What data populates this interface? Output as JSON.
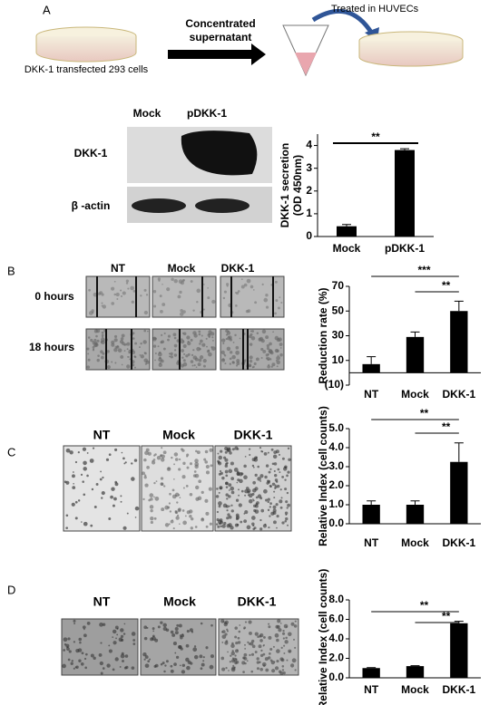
{
  "panels": [
    "A",
    "B",
    "C",
    "D"
  ],
  "diagram": {
    "source": "DKK-1 transfected 293 cells",
    "arrow": [
      "Concentrated",
      "supernatant"
    ],
    "target": "Treated in HUVECs"
  },
  "blot": {
    "lanes": [
      "Mock",
      "pDKK-1"
    ],
    "rows": [
      "DKK-1",
      "β -actin"
    ]
  },
  "migration": {
    "columns": [
      "NT",
      "Mock",
      "DKK-1"
    ],
    "rows": [
      "0 hours",
      "18 hours"
    ]
  },
  "invasion": {
    "columns": [
      "NT",
      "Mock",
      "DKK-1"
    ]
  },
  "tube": {
    "columns": [
      "NT",
      "Mock",
      "DKK-1"
    ]
  },
  "chart_data": [
    {
      "type": "bar",
      "ylabel": [
        "DKK-1 secretion",
        "(OD 450nm)"
      ],
      "categories": [
        "Mock",
        "pDKK-1"
      ],
      "values": [
        0.45,
        3.8
      ],
      "errors": [
        0.08,
        0.06
      ],
      "color": "#000000",
      "ylim": [
        0,
        4.5
      ],
      "yticks": [
        0,
        1,
        2,
        3,
        4
      ],
      "annotations": [
        "**"
      ]
    },
    {
      "type": "bar",
      "ylabel": "Reduction rate (%)",
      "categories": [
        "NT",
        "Mock",
        "DKK-1"
      ],
      "values": [
        7,
        29,
        50
      ],
      "errors": [
        6,
        4,
        8
      ],
      "color": "#000000",
      "ylim": [
        -10,
        70
      ],
      "yticks": [
        {
          "value": -10,
          "label": "(10)"
        },
        10,
        30,
        50,
        70
      ],
      "annotations": [
        "***",
        "**"
      ]
    },
    {
      "type": "bar",
      "ylabel": "Relative Index (cell counts)",
      "categories": [
        "NT",
        "Mock",
        "DKK-1"
      ],
      "values": [
        1.0,
        1.0,
        3.25
      ],
      "errors": [
        0.2,
        0.2,
        1.0
      ],
      "color": "#000000",
      "ylim": [
        0,
        5
      ],
      "yticks": [
        {
          "value": 0,
          "label": "0.0"
        },
        {
          "value": 1,
          "label": "1.0"
        },
        {
          "value": 2,
          "label": "2.0"
        },
        {
          "value": 3,
          "label": "3.0"
        },
        {
          "value": 4,
          "label": "4.0"
        },
        {
          "value": 5,
          "label": "5.0"
        }
      ],
      "annotations": [
        "**",
        "**"
      ]
    },
    {
      "type": "bar",
      "ylabel": "Relative Index (cell counts)",
      "categories": [
        "NT",
        "Mock",
        "DKK-1"
      ],
      "values": [
        1.0,
        1.2,
        5.6
      ],
      "errors": [
        0.05,
        0.05,
        0.2
      ],
      "color": "#000000",
      "ylim": [
        0,
        8
      ],
      "yticks": [
        {
          "value": 0,
          "label": "0.0"
        },
        {
          "value": 2,
          "label": "2.0"
        },
        {
          "value": 4,
          "label": "4.0"
        },
        {
          "value": 6,
          "label": "6.0"
        },
        {
          "value": 8,
          "label": "8.0"
        }
      ],
      "annotations": [
        "**",
        "**"
      ]
    }
  ]
}
